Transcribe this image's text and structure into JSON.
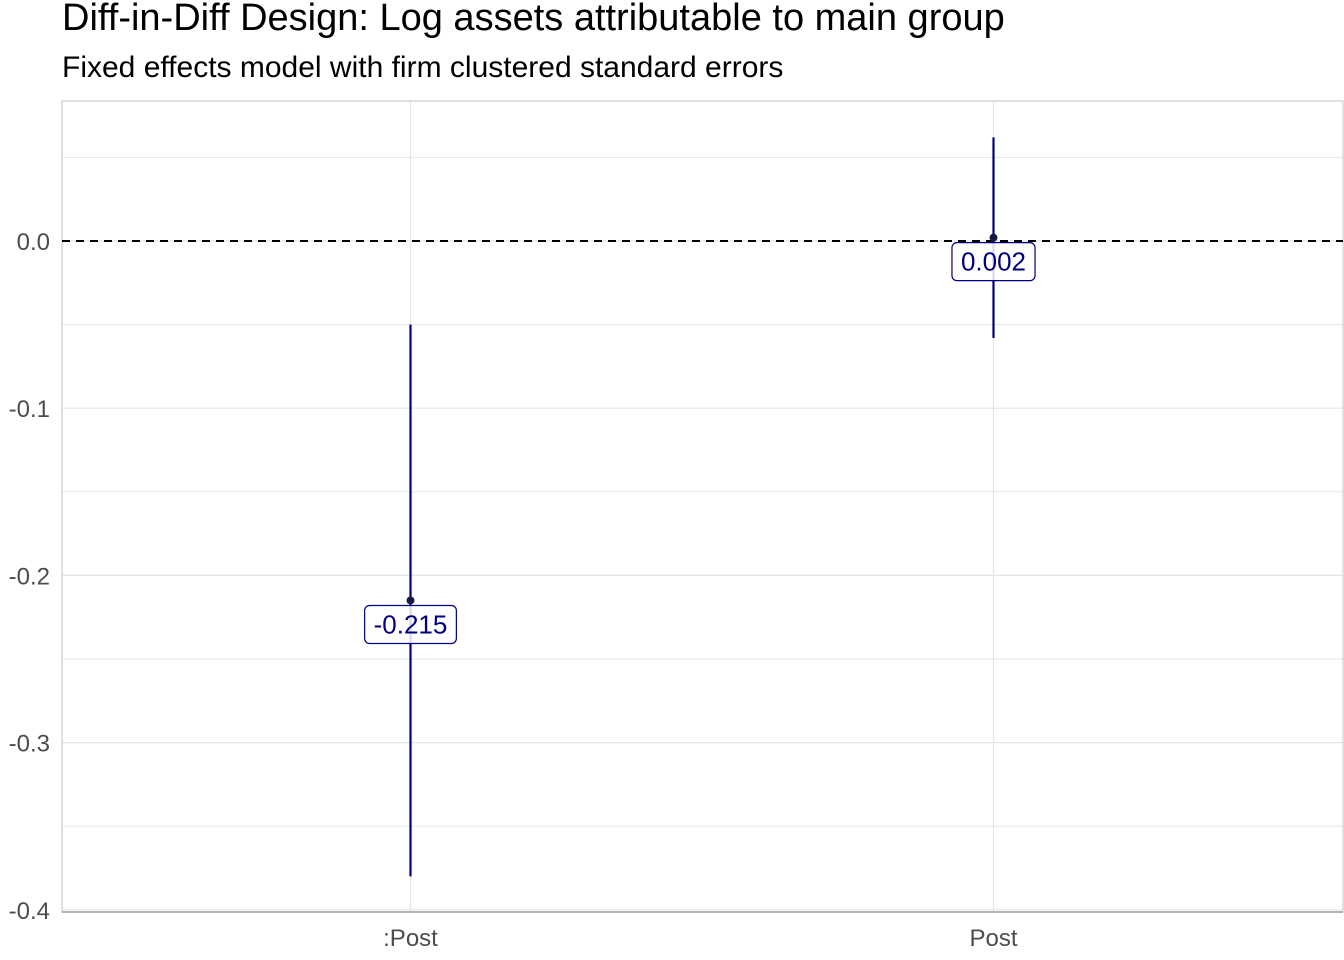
{
  "chart_data": {
    "type": "errorbar",
    "title": "Diff-in-Diff Design: Log assets attributable to main group",
    "subtitle": "Fixed effects model with firm clustered standard errors",
    "xlabel": "",
    "ylabel": "",
    "categories": [
      ":Post",
      "Post"
    ],
    "estimates": [
      -0.215,
      0.002
    ],
    "ci_low": [
      -0.38,
      -0.058
    ],
    "ci_high": [
      -0.05,
      0.062
    ],
    "labels": [
      "-0.215",
      "0.002"
    ],
    "ylim": [
      -0.4,
      0.08
    ],
    "yticks": [
      0.0,
      -0.1,
      -0.2,
      -0.3,
      -0.4
    ],
    "ytick_labels": [
      "0.0",
      "-0.1",
      "-0.2",
      "-0.3",
      "-0.4"
    ],
    "reference_line": 0.0,
    "grid": true,
    "colors": {
      "series": "#00007f",
      "point": "#1a1a40",
      "grid": "#e5e5e5",
      "reference": "#000000",
      "axis_text": "#4d4d4d",
      "frame": "#cccccc"
    }
  }
}
